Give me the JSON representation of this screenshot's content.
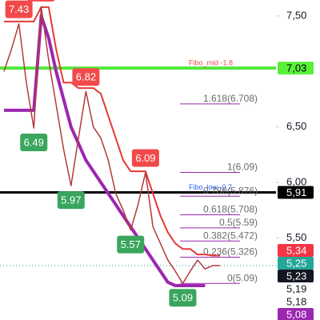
{
  "chart_data": {
    "type": "line",
    "x": [
      0,
      1,
      2,
      3,
      4,
      5,
      6,
      7,
      8,
      9,
      10,
      11,
      12,
      13,
      14,
      15,
      16,
      17,
      18,
      19,
      20,
      21,
      22,
      23,
      24,
      25,
      26,
      27,
      28,
      29
    ],
    "xlim": [
      0,
      29
    ],
    "ylim": [
      4.76,
      7.644
    ],
    "yticks": [
      {
        "value": 7.5,
        "label": "7,50"
      },
      {
        "value": 6.5,
        "label": "6,50"
      },
      {
        "value": 6.0,
        "label": "6,00"
      },
      {
        "value": 5.5,
        "label": "5,50"
      }
    ],
    "series": [
      {
        "color": "#e53935",
        "values": [
          7.45,
          7.45,
          7.45,
          7.45,
          7.45,
          7.58,
          7.58,
          7.2,
          6.9,
          6.9,
          6.85,
          6.85,
          6.85,
          6.8,
          6.6,
          6.4,
          6.2,
          6.1,
          6.1,
          6.1,
          5.9,
          5.7,
          5.55,
          5.45,
          5.4,
          5.4,
          5.35,
          5.35,
          5.34,
          5.34
        ]
      },
      {
        "color": "#9c27b0",
        "values": [
          6.65,
          6.65,
          6.65,
          6.65,
          6.65,
          7.5,
          7.3,
          7.0,
          6.75,
          6.5,
          6.35,
          6.2,
          6.1,
          6.0,
          5.9,
          5.8,
          5.7,
          5.6,
          5.5,
          5.4,
          5.3,
          5.2,
          5.1,
          5.07,
          5.07,
          5.07,
          5.07,
          5.07,
          null,
          null
        ]
      },
      {
        "color": "#b23a3a",
        "values": [
          7.0,
          7.2,
          7.43,
          6.9,
          6.49,
          7.58,
          7.1,
          6.7,
          6.3,
          5.97,
          6.4,
          6.82,
          6.5,
          6.4,
          6.2,
          5.9,
          5.75,
          5.57,
          5.8,
          6.09,
          5.6,
          5.45,
          5.3,
          5.2,
          5.09,
          5.2,
          5.3,
          5.22,
          5.25,
          5.25
        ]
      }
    ],
    "markers": [
      {
        "x": 2,
        "value": 7.43,
        "kind": "high",
        "color": "#f24a4a"
      },
      {
        "x": 5,
        "value": 7.58,
        "kind": "high",
        "color": "#f24a4a"
      },
      {
        "x": 4,
        "value": 6.49,
        "kind": "low",
        "color": "#3aa55d"
      },
      {
        "x": 11,
        "value": 6.82,
        "kind": "high",
        "color": "#f24a4a"
      },
      {
        "x": 9,
        "value": 5.97,
        "kind": "low",
        "color": "#3aa55d"
      },
      {
        "x": 19,
        "value": 6.09,
        "kind": "high",
        "color": "#f24a4a"
      },
      {
        "x": 17,
        "value": 5.57,
        "kind": "low",
        "color": "#3aa55d"
      },
      {
        "x": 24,
        "value": 5.09,
        "kind": "low",
        "color": "#3aa55d"
      }
    ],
    "hlines": [
      {
        "value": 7.03,
        "color": "#52e83a",
        "width": 4,
        "label": "Fibo_mid -1.8",
        "label_color": "#f24a4a"
      },
      {
        "value": 5.91,
        "color": "#000000",
        "width": 3,
        "label": "Fibo_low -0.7",
        "label_color": "#2962ff"
      }
    ],
    "last_price": {
      "value": 5.25,
      "color": "#26a69a"
    },
    "fib_levels": [
      {
        "value": 6.708,
        "label": "1.618(6.708)"
      },
      {
        "value": 6.09,
        "label": "1(6.09)"
      },
      {
        "value": 5.876,
        "label": "0.786(5.876)"
      },
      {
        "value": 5.708,
        "label": "0.618(5.708)"
      },
      {
        "value": 5.59,
        "label": "0.5(5.59)"
      },
      {
        "value": 5.472,
        "label": "0.382(5.472)"
      },
      {
        "value": 5.326,
        "label": "0.236(5.326)"
      },
      {
        "value": 5.09,
        "label": "0(5.09)"
      }
    ],
    "price_tags": [
      {
        "value": 7.03,
        "label": "7,03",
        "color": "#59f03c",
        "text_color": "#000000"
      },
      {
        "value": 5.91,
        "label": "5,91",
        "color": "#000000",
        "text_color": "#ffffff"
      },
      {
        "value": 5.34,
        "label": "5,34",
        "color": "#f23645",
        "text_color": "#ffffff"
      },
      {
        "value": 5.25,
        "label": "5,25",
        "color": "#26a69a",
        "text_color": "#ffffff"
      },
      {
        "value": 5.23,
        "label": "5,23",
        "color": "#131722",
        "text_color": "#ffffff"
      },
      {
        "value": 5.19,
        "label": "5,19",
        "color": "#ffffff",
        "text_color": "#131722"
      },
      {
        "value": 5.18,
        "label": "5,18",
        "color": "#ffffff",
        "text_color": "#131722"
      },
      {
        "value": 5.08,
        "label": "5,08",
        "color": "#9c27b0",
        "text_color": "#ffffff"
      }
    ]
  }
}
